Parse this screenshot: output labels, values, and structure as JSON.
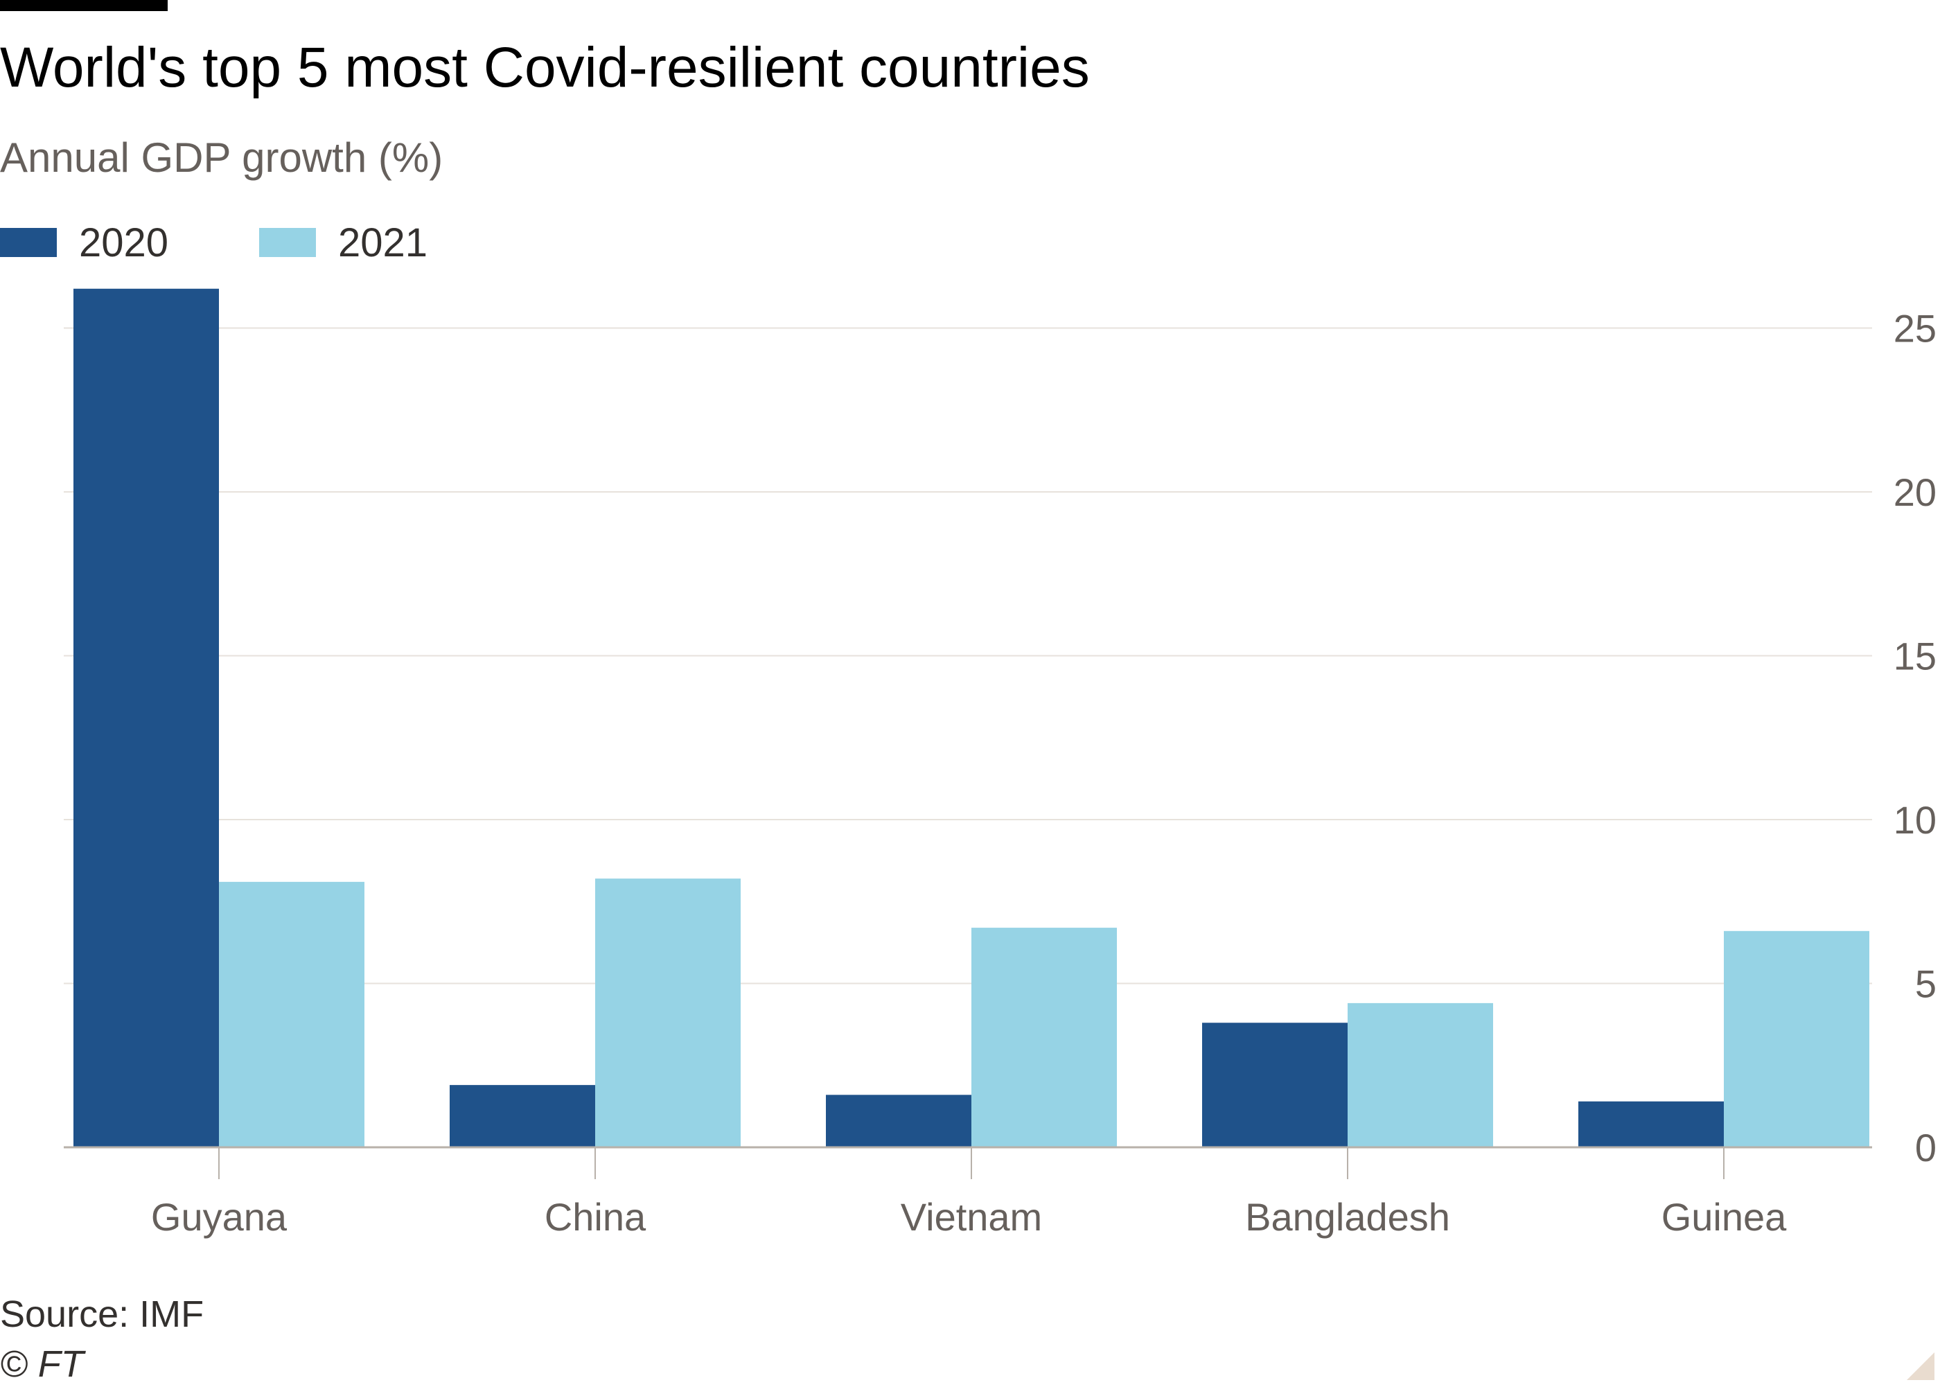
{
  "title": "World's top 5 most Covid-resilient countries",
  "subtitle": "Annual GDP growth (%)",
  "legend": [
    {
      "label": "2020",
      "color": "#1f528a"
    },
    {
      "label": "2021",
      "color": "#96d3e5"
    }
  ],
  "source": "Source: IMF",
  "copyright": "© FT",
  "chart_data": {
    "type": "bar",
    "categories": [
      "Guyana",
      "China",
      "Vietnam",
      "Bangladesh",
      "Guinea"
    ],
    "series": [
      {
        "name": "2020",
        "values": [
          26.2,
          1.9,
          1.6,
          3.8,
          1.4
        ],
        "color": "#1f528a"
      },
      {
        "name": "2021",
        "values": [
          8.1,
          8.2,
          6.7,
          4.4,
          6.6
        ],
        "color": "#96d3e5"
      }
    ],
    "xlabel": "",
    "ylabel": "",
    "ylim": [
      0,
      25
    ],
    "yticks": [
      0,
      5,
      10,
      15,
      20,
      25
    ],
    "ytick_labels": [
      "0",
      "5",
      "10",
      "15",
      "20",
      "25"
    ],
    "y_axis_side": "right",
    "grid": true,
    "legend_position": "top-left",
    "gridline_color": "#e7e2dc",
    "axis_color": "#b8b1aa"
  }
}
